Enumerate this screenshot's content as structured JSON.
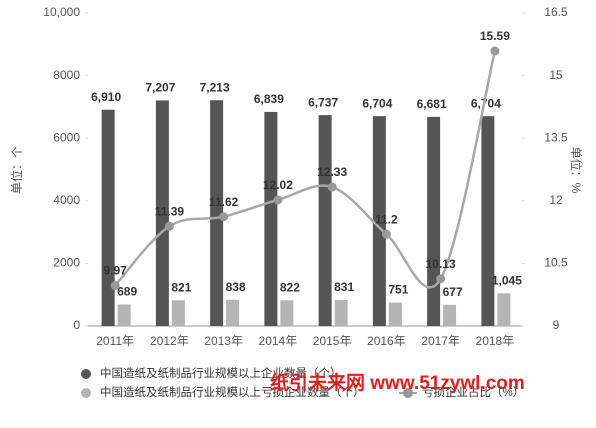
{
  "chart_data": {
    "type": "bar-line",
    "categories": [
      "2011年",
      "2012年",
      "2013年",
      "2014年",
      "2015年",
      "2016年",
      "2017年",
      "2018年"
    ],
    "series": [
      {
        "name": "中国造纸及纸制品行业规模以上企业数量（个）",
        "color": "#555555",
        "type": "bar",
        "values": [
          6910,
          7207,
          7213,
          6839,
          6737,
          6704,
          6681,
          6704
        ],
        "value_labels": [
          "6,910",
          "7,207",
          "7,213",
          "6,839",
          "6,737",
          "6,704",
          "6,681",
          "6,704"
        ]
      },
      {
        "name": "中国造纸及纸制品行业规模以上亏损企业数量（个）",
        "color": "#b5b5b5",
        "type": "bar",
        "values": [
          689,
          821,
          838,
          822,
          831,
          751,
          677,
          1045
        ],
        "value_labels": [
          "689",
          "821",
          "838",
          "822",
          "831",
          "751",
          "677",
          "1,045"
        ]
      },
      {
        "name": "亏损企业占比（%）",
        "color": "#a8a8a8",
        "type": "line",
        "axis": "y2",
        "values": [
          9.97,
          11.39,
          11.62,
          12.02,
          12.33,
          11.2,
          10.13,
          15.59
        ]
      }
    ],
    "ylabel": "单位：个",
    "y2label": "单位：%",
    "ylim": [
      0,
      10000
    ],
    "yticks": [
      0,
      2000,
      4000,
      6000,
      8000,
      {
        "value": 10000,
        "label": "10,000"
      }
    ],
    "y2lim": [
      9,
      16.5
    ],
    "y2ticks": [
      9,
      10.5,
      12,
      13.5,
      15,
      16.5
    ],
    "watermark": "纸引未来网  www.51zywl.com"
  }
}
